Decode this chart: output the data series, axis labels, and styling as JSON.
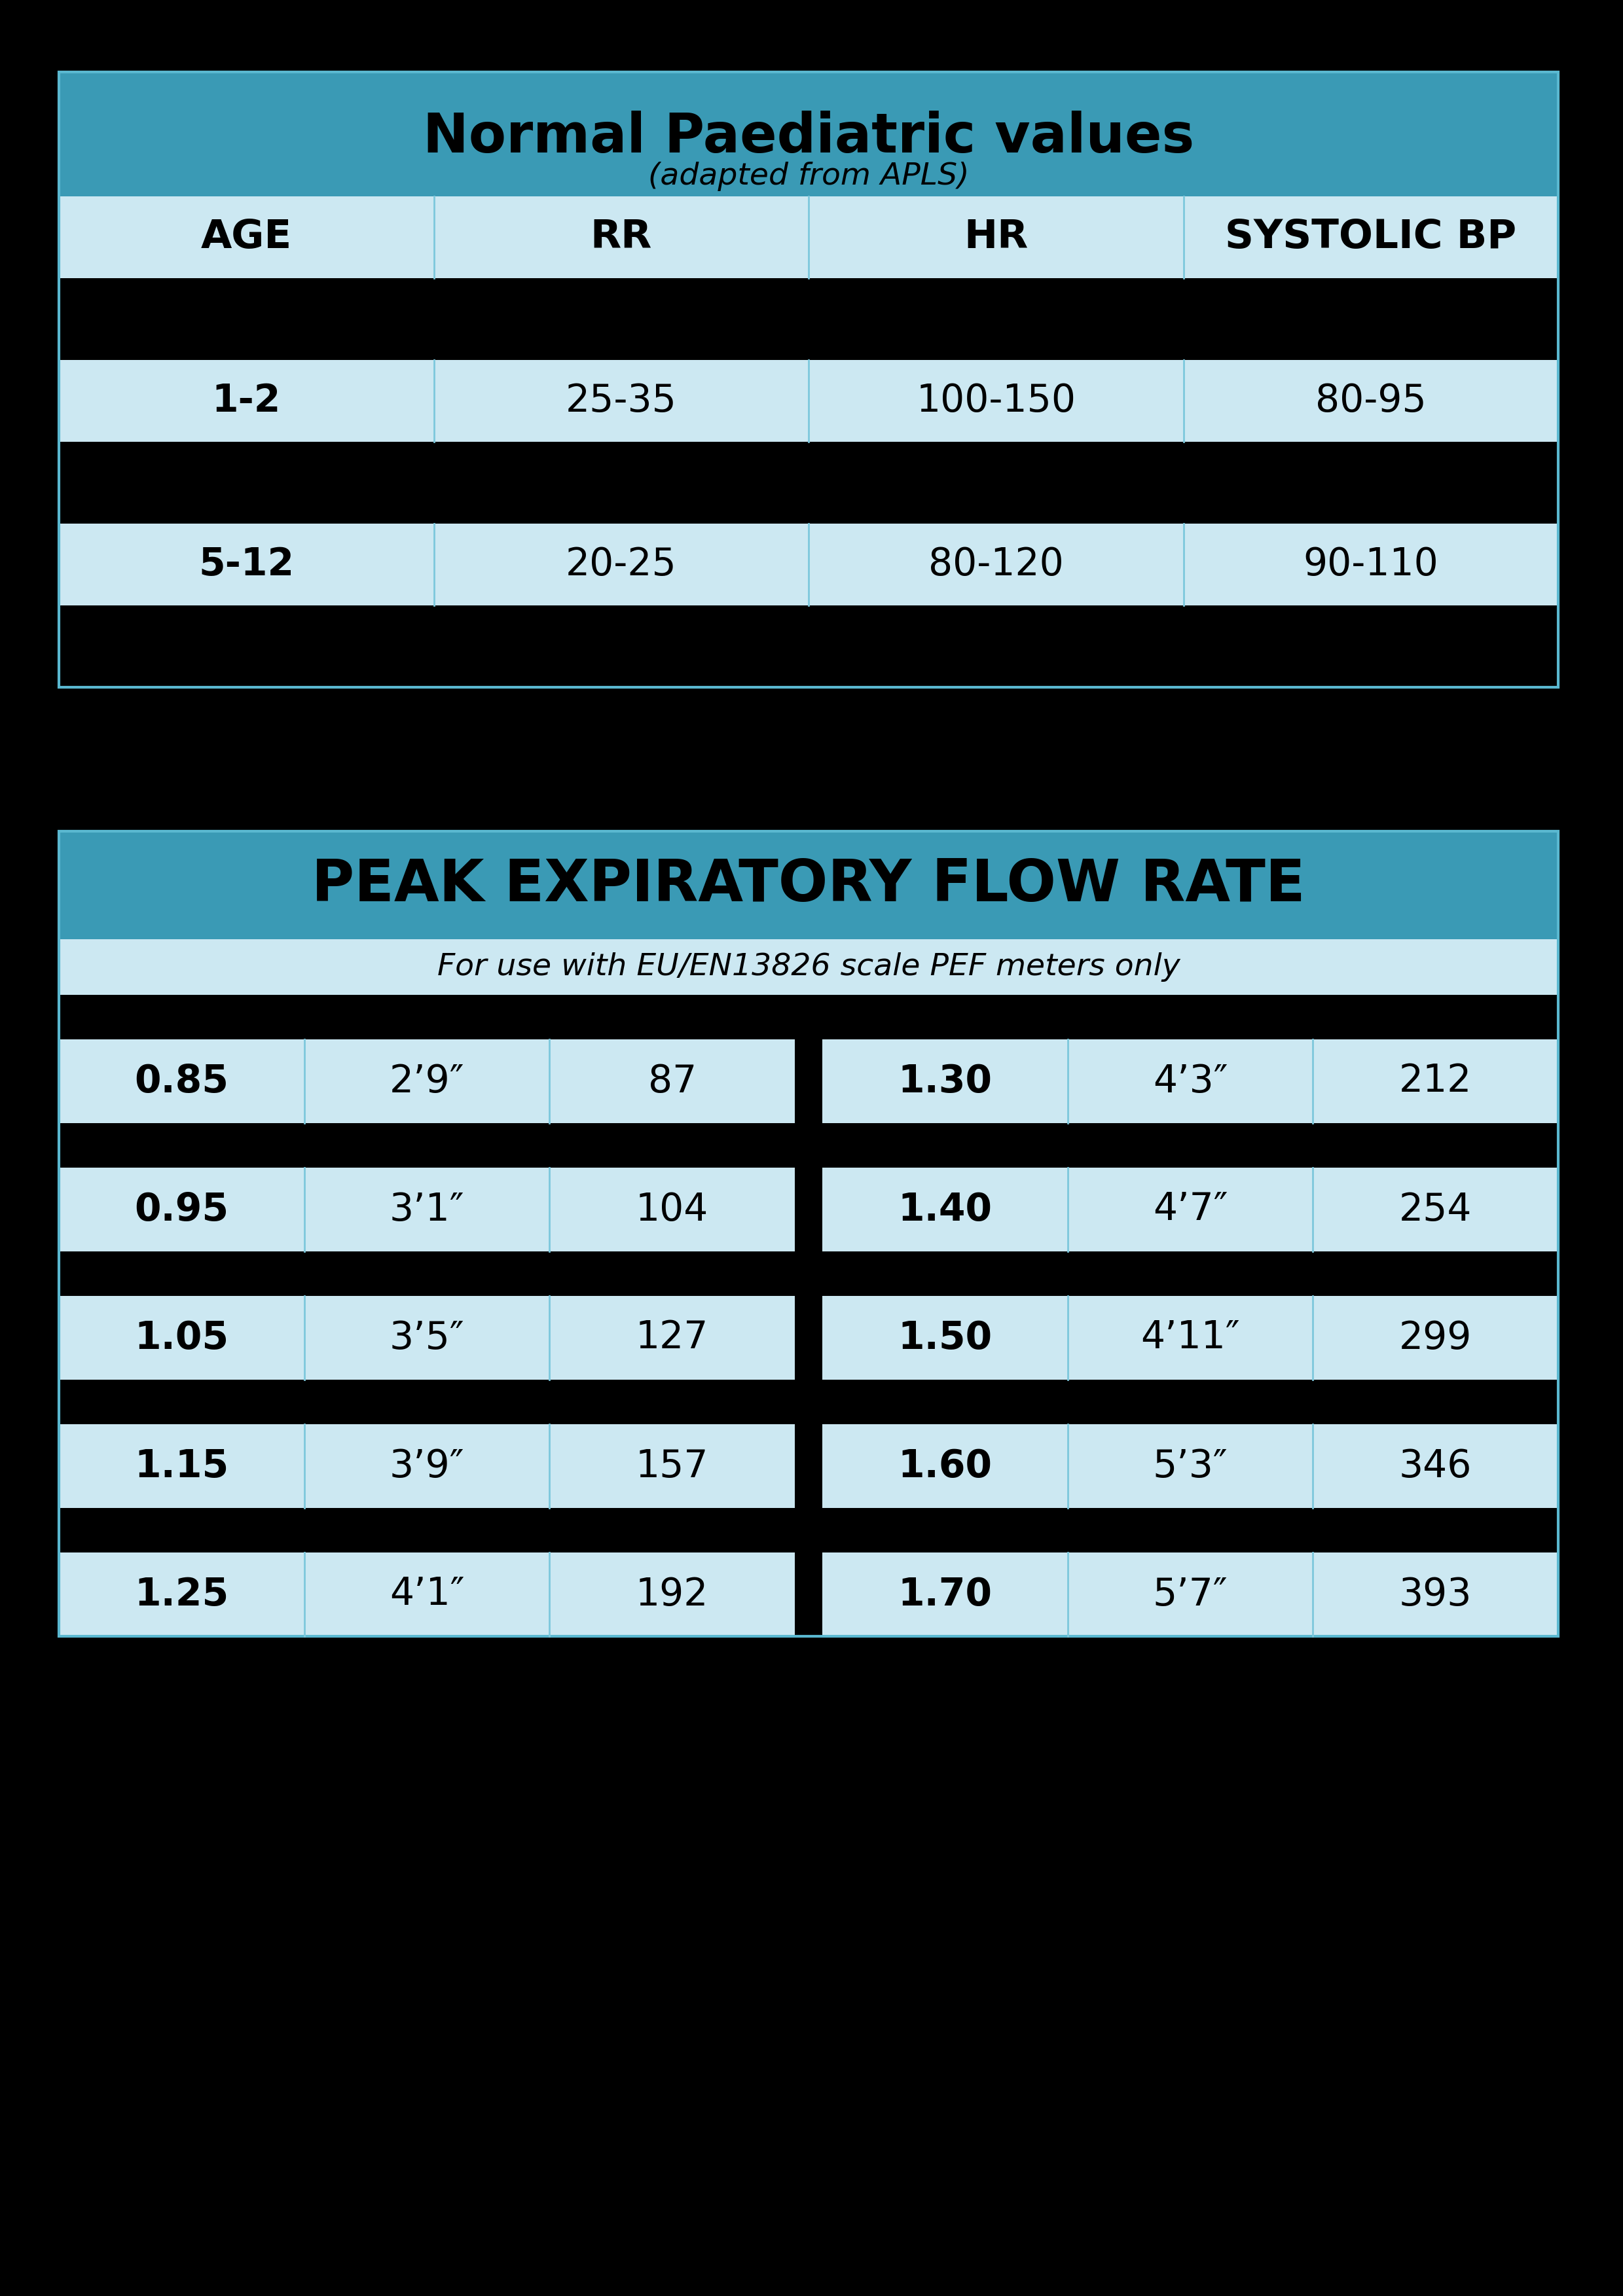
{
  "bg_color": "#000000",
  "teal_color": "#3a9ab5",
  "light_blue_color": "#cce8f2",
  "black_row_color": "#000000",
  "table1_title": "Normal Paediatric values",
  "table1_subtitle": "(adapted from APLS)",
  "table1_headers": [
    "AGE",
    "RR",
    "HR",
    "SYSTOLIC BP"
  ],
  "table1_rows": [
    [
      "1-2",
      "25-35",
      "100-150",
      "80-95"
    ],
    [
      "5-12",
      "20-25",
      "80-120",
      "90-110"
    ]
  ],
  "table2_title": "PEAK EXPIRATORY FLOW RATE",
  "table2_subtitle": "For use with EU/EN13826 scale PEF meters only",
  "table2_left": [
    [
      "0.85",
      "2’9″",
      "87"
    ],
    [
      "0.95",
      "3’1″",
      "104"
    ],
    [
      "1.05",
      "3’5″",
      "127"
    ],
    [
      "1.15",
      "3’9″",
      "157"
    ],
    [
      "1.25",
      "4’1″",
      "192"
    ]
  ],
  "table2_right": [
    [
      "1.30",
      "4’3″",
      "212"
    ],
    [
      "1.40",
      "4’7″",
      "254"
    ],
    [
      "1.50",
      "4’11″",
      "299"
    ],
    [
      "1.60",
      "5’3″",
      "346"
    ],
    [
      "1.70",
      "5’7″",
      "393"
    ]
  ]
}
